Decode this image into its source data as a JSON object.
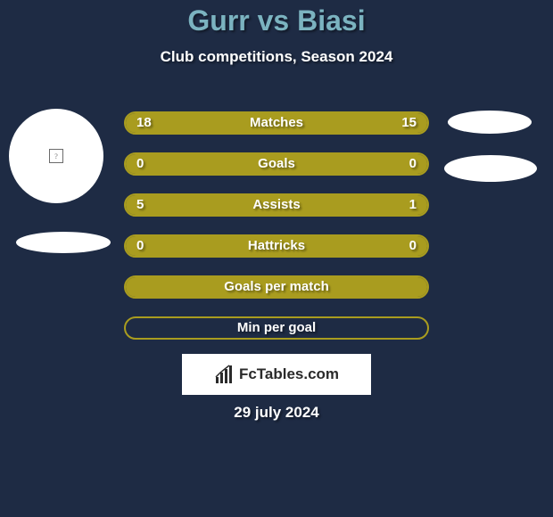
{
  "background_color": "#1e2b44",
  "accent_color": "#a99c1f",
  "title_color": "#7bb3c0",
  "text_color": "#ffffff",
  "title": "Gurr vs Biasi",
  "subtitle": "Club competitions, Season 2024",
  "date": "29 july 2024",
  "brand": "FcTables.com",
  "rows": [
    {
      "label": "Matches",
      "left_val": "18",
      "right_val": "15",
      "left_pct": 54.5,
      "right_pct": 45.5
    },
    {
      "label": "Goals",
      "left_val": "0",
      "right_val": "0",
      "left_pct": 50,
      "right_pct": 50
    },
    {
      "label": "Assists",
      "left_val": "5",
      "right_val": "1",
      "left_pct": 83.3,
      "right_pct": 16.7
    },
    {
      "label": "Hattricks",
      "left_val": "0",
      "right_val": "0",
      "left_pct": 50,
      "right_pct": 50
    },
    {
      "label": "Goals per match",
      "left_val": "",
      "right_val": "",
      "left_pct": 100,
      "right_pct": 0
    },
    {
      "label": "Min per goal",
      "left_val": "",
      "right_val": "",
      "left_pct": 0,
      "right_pct": 0
    }
  ],
  "bar_style": {
    "height": 26,
    "gap": 20,
    "radius": 13,
    "border_color": "#a99c1f",
    "fill_color": "#a99c1f",
    "track_color": "transparent",
    "label_fontsize": 15
  }
}
